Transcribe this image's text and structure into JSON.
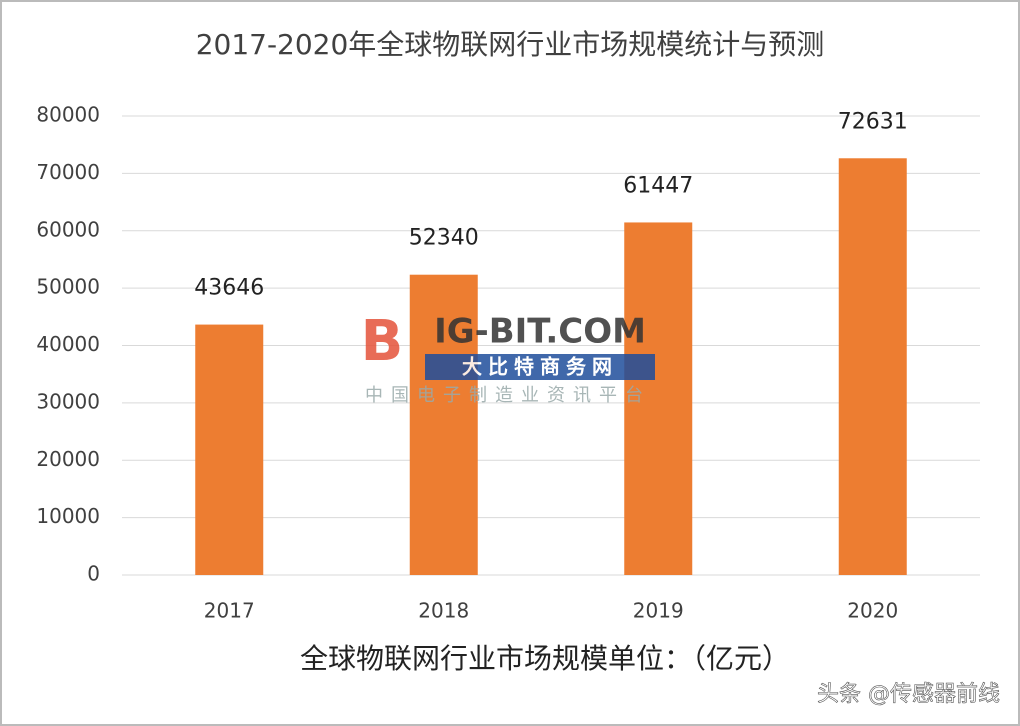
{
  "chart_data": {
    "type": "bar",
    "title": "2017-2020年全球物联网行业市场规模统计与预测",
    "categories": [
      "2017",
      "2018",
      "2019",
      "2020"
    ],
    "values": [
      43646,
      52340,
      61447,
      72631
    ],
    "color": "#ed7d31",
    "ylim": [
      0,
      80000
    ],
    "yticks": [
      0,
      10000,
      20000,
      30000,
      40000,
      50000,
      60000,
      70000,
      80000
    ],
    "grid": true,
    "x_label": "全球物联网行业市场规模单位：（亿元）"
  },
  "watermark": {
    "logo": "IG-BIT.COM",
    "name": "大比特商务网",
    "tagline": "中国电子制造业资讯平台"
  },
  "footer": {
    "credit": "头条 @传感器前线"
  }
}
